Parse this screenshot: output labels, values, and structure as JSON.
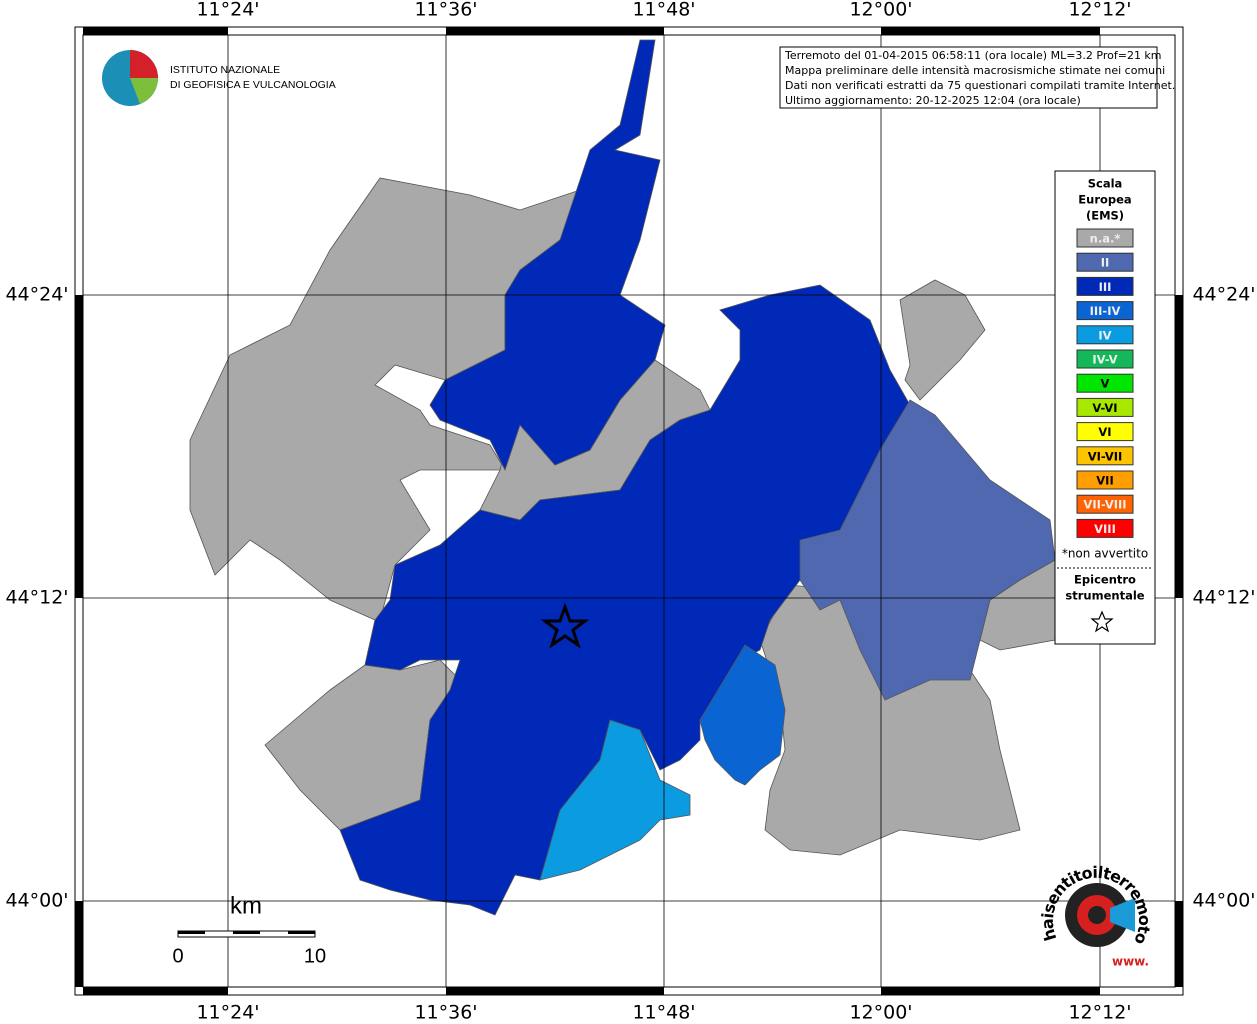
{
  "axes": {
    "xticks": [
      "11°24'",
      "11°36'",
      "11°48'",
      "12°00'",
      "12°12'"
    ],
    "yticks": [
      "44°24'",
      "44°12'",
      "44°00'"
    ]
  },
  "logo": {
    "line1": "ISTITUTO NAZIONALE",
    "line2": "DI GEOFISICA E VULCANOLOGIA"
  },
  "info": [
    "Terremoto del 01-04-2015 06:58:11 (ora locale) ML=3.2 Prof=21 km",
    "Mappa preliminare delle intensità macrosismiche stimate nei comuni",
    "Dati non verificati estratti da 75 questionari compilati tramite Internet.",
    "Ultimo aggiornamento: 20-12-2025 12:04 (ora locale)"
  ],
  "legend": {
    "title": [
      "Scala",
      "Europea",
      "(EMS)"
    ],
    "classes": [
      {
        "label": "n.a.*",
        "color": "#a9a9a9"
      },
      {
        "label": "II",
        "color": "#5068b0"
      },
      {
        "label": "III",
        "color": "#0029b8"
      },
      {
        "label": "III-IV",
        "color": "#0a64d2"
      },
      {
        "label": "IV",
        "color": "#0a9be0"
      },
      {
        "label": "IV-V",
        "color": "#14b85a"
      },
      {
        "label": "V",
        "color": "#00e600"
      },
      {
        "label": "V-VI",
        "color": "#a8e800"
      },
      {
        "label": "VI",
        "color": "#ffff00"
      },
      {
        "label": "VI-VII",
        "color": "#ffc400"
      },
      {
        "label": "VII",
        "color": "#ff9e00"
      },
      {
        "label": "VII-VIII",
        "color": "#ff6200"
      },
      {
        "label": "VIII",
        "color": "#ff0000"
      }
    ],
    "note": "*non avvertito",
    "epicenter": [
      "Epicentro",
      "strumentale"
    ]
  },
  "scale_bar": {
    "unit": "km",
    "start": "0",
    "end": "10"
  },
  "site_logo": {
    "name": "haisentitoilterremoto.it",
    "prefix": "www."
  }
}
